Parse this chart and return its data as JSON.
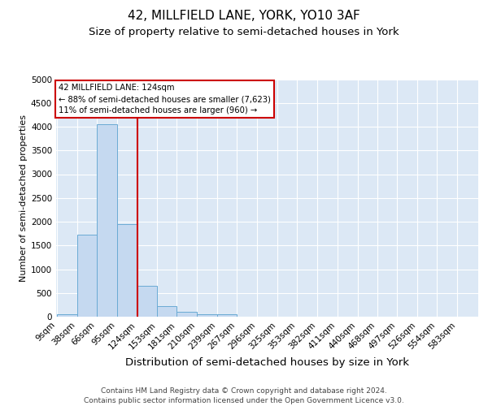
{
  "title": "42, MILLFIELD LANE, YORK, YO10 3AF",
  "subtitle": "Size of property relative to semi-detached houses in York",
  "xlabel": "Distribution of semi-detached houses by size in York",
  "ylabel": "Number of semi-detached properties",
  "footer_line1": "Contains HM Land Registry data © Crown copyright and database right 2024.",
  "footer_line2": "Contains public sector information licensed under the Open Government Licence v3.0.",
  "bin_labels": [
    "9sqm",
    "38sqm",
    "66sqm",
    "95sqm",
    "124sqm",
    "153sqm",
    "181sqm",
    "210sqm",
    "239sqm",
    "267sqm",
    "296sqm",
    "325sqm",
    "353sqm",
    "382sqm",
    "411sqm",
    "440sqm",
    "468sqm",
    "497sqm",
    "526sqm",
    "554sqm",
    "583sqm"
  ],
  "bar_values": [
    50,
    1720,
    4050,
    1950,
    650,
    230,
    100,
    50,
    50,
    0,
    0,
    0,
    0,
    0,
    0,
    0,
    0,
    0,
    0,
    0,
    0
  ],
  "bar_color": "#c5d9f0",
  "bar_edgecolor": "#6aaad4",
  "marker_color": "#cc0000",
  "annotation_title": "42 MILLFIELD LANE: 124sqm",
  "annotation_line1": "← 88% of semi-detached houses are smaller (7,623)",
  "annotation_line2": "11% of semi-detached houses are larger (960) →",
  "annotation_box_color": "#ffffff",
  "annotation_box_edgecolor": "#cc0000",
  "ylim": [
    0,
    5000
  ],
  "yticks": [
    0,
    500,
    1000,
    1500,
    2000,
    2500,
    3000,
    3500,
    4000,
    4500,
    5000
  ],
  "bg_color": "#dce8f5",
  "title_fontsize": 11,
  "subtitle_fontsize": 9.5,
  "xlabel_fontsize": 9.5,
  "ylabel_fontsize": 8,
  "tick_fontsize": 7.5,
  "footer_fontsize": 6.5,
  "bin_starts": [
    9,
    38,
    66,
    95,
    124,
    153,
    181,
    210,
    239,
    267,
    296,
    325,
    353,
    382,
    411,
    440,
    468,
    497,
    526,
    554,
    583
  ]
}
